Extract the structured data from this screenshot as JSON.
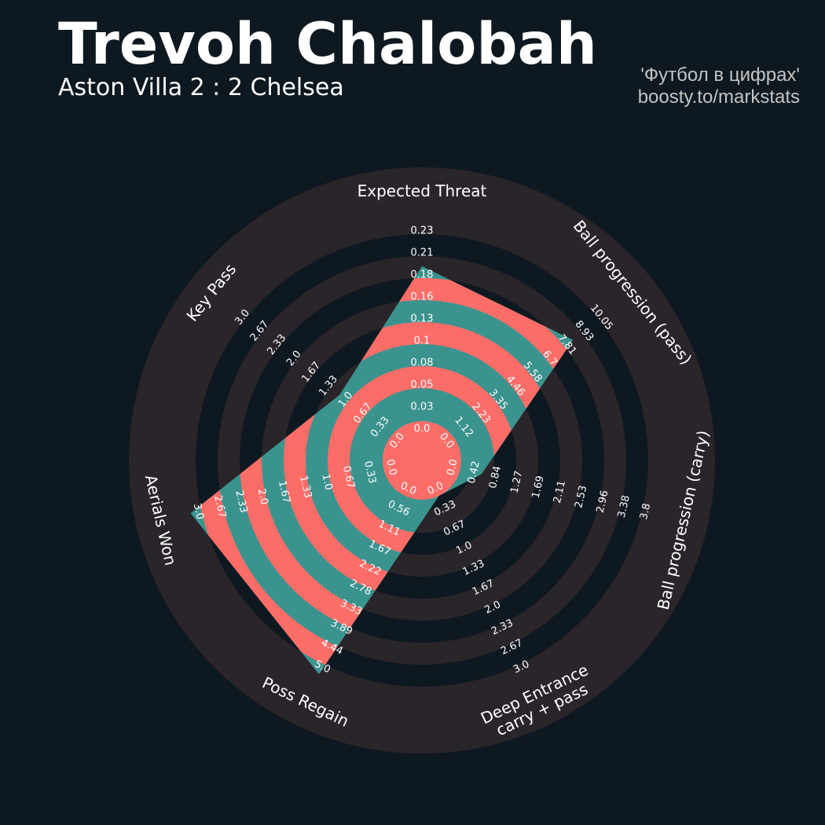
{
  "header": {
    "player_name": "Trevoh Chalobah",
    "match": "Aston Villa 2 : 2 Chelsea",
    "credit_line1": "'Футбол в цифрах'",
    "credit_line2": "boosty.to/markstats"
  },
  "colors": {
    "background": "#0e1820",
    "ring_band": "#2a252b",
    "fill_teal": "#3b938e",
    "fill_coral": "#fd6d68",
    "text": "#ffffff"
  },
  "chart_data": {
    "type": "radar",
    "title": "Trevoh Chalobah",
    "subtitle": "Aston Villa 2 : 2 Chelsea",
    "parameters": [
      {
        "name": "Expected Threat",
        "value": 0.18,
        "min": 0.0,
        "max": 0.23,
        "ticks": [
          "0.0",
          "0.03",
          "0.05",
          "0.08",
          "0.1",
          "0.13",
          "0.16",
          "0.18",
          "0.21",
          "0.23"
        ]
      },
      {
        "name": "Ball progression (pass)",
        "value": 7.81,
        "min": 0.0,
        "max": 10.05,
        "ticks": [
          "0.0",
          "1.12",
          "2.23",
          "3.35",
          "4.46",
          "5.58",
          "6.7",
          "7.81",
          "8.93",
          "10.05"
        ]
      },
      {
        "name": "Ball progression (carry)",
        "value": 0.42,
        "min": 0.0,
        "max": 3.8,
        "ticks": [
          "0.0",
          "0.42",
          "0.84",
          "1.27",
          "1.69",
          "2.11",
          "2.53",
          "2.96",
          "3.38",
          "3.8"
        ]
      },
      {
        "name": "Deep Entrance\ncarry + pass",
        "value": 0.0,
        "min": 0.0,
        "max": 3.0,
        "ticks": [
          "0.0",
          "0.33",
          "0.67",
          "1.0",
          "1.33",
          "1.67",
          "2.0",
          "2.33",
          "2.67",
          "3.0"
        ]
      },
      {
        "name": "Poss Regain",
        "value": 5.0,
        "min": 0.0,
        "max": 5.0,
        "ticks": [
          "0.0",
          "0.56",
          "1.11",
          "1.67",
          "2.22",
          "2.78",
          "3.33",
          "3.89",
          "4.44",
          "5.0"
        ]
      },
      {
        "name": "Aerials Won",
        "value": 3.0,
        "min": 0.0,
        "max": 3.0,
        "ticks": [
          "0.0",
          "0.33",
          "0.67",
          "1.0",
          "1.33",
          "1.67",
          "2.0",
          "2.33",
          "2.67",
          "3.0"
        ]
      },
      {
        "name": "Key Pass",
        "value": 1.0,
        "min": 0.0,
        "max": 3.0,
        "ticks": [
          "0.0",
          "0.33",
          "0.67",
          "1.0",
          "1.33",
          "1.67",
          "2.0",
          "2.33",
          "2.67",
          "3.0"
        ]
      }
    ],
    "grid": "concentric bands",
    "legend": "none"
  }
}
